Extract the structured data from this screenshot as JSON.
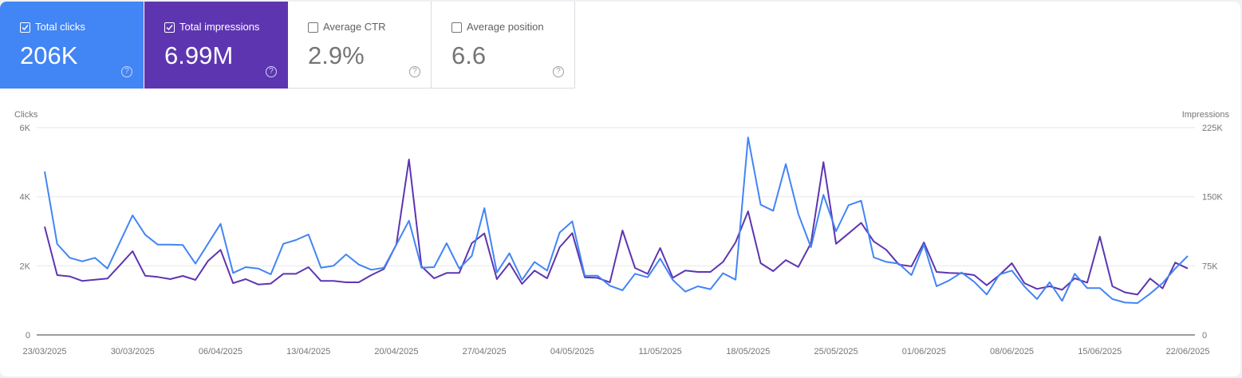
{
  "metrics": [
    {
      "label": "Total clicks",
      "value": "206K",
      "checked": true,
      "color": "#4285f4"
    },
    {
      "label": "Total impressions",
      "value": "6.99M",
      "checked": true,
      "color": "#5e35b1"
    },
    {
      "label": "Average CTR",
      "value": "2.9%",
      "checked": false
    },
    {
      "label": "Average position",
      "value": "6.6",
      "checked": false
    }
  ],
  "help_icon": "question-circle-icon",
  "chart_data": {
    "type": "line",
    "left_axis": {
      "label": "Clicks",
      "ticks": [
        "0",
        "2K",
        "4K",
        "6K"
      ],
      "tick_values": [
        0,
        2000,
        4000,
        6000
      ],
      "range": [
        0,
        6000
      ]
    },
    "right_axis": {
      "label": "Impressions",
      "ticks": [
        "0",
        "75K",
        "150K",
        "225K"
      ],
      "tick_values": [
        0,
        75000,
        150000,
        225000
      ],
      "range": [
        0,
        225000
      ]
    },
    "grid": true,
    "x_tick_labels": [
      "23/03/2025",
      "30/03/2025",
      "06/04/2025",
      "13/04/2025",
      "20/04/2025",
      "27/04/2025",
      "04/05/2025",
      "11/05/2025",
      "18/05/2025",
      "25/05/2025",
      "01/06/2025",
      "08/06/2025",
      "15/06/2025",
      "22/06/2025"
    ],
    "x": [
      "23/03/2025",
      "24/03/2025",
      "25/03/2025",
      "26/03/2025",
      "27/03/2025",
      "28/03/2025",
      "29/03/2025",
      "30/03/2025",
      "31/03/2025",
      "01/04/2025",
      "02/04/2025",
      "03/04/2025",
      "04/04/2025",
      "05/04/2025",
      "06/04/2025",
      "07/04/2025",
      "08/04/2025",
      "09/04/2025",
      "10/04/2025",
      "11/04/2025",
      "12/04/2025",
      "13/04/2025",
      "14/04/2025",
      "15/04/2025",
      "16/04/2025",
      "17/04/2025",
      "18/04/2025",
      "19/04/2025",
      "20/04/2025",
      "21/04/2025",
      "22/04/2025",
      "23/04/2025",
      "24/04/2025",
      "25/04/2025",
      "26/04/2025",
      "27/04/2025",
      "28/04/2025",
      "29/04/2025",
      "30/04/2025",
      "01/05/2025",
      "02/05/2025",
      "03/05/2025",
      "04/05/2025",
      "05/05/2025",
      "06/05/2025",
      "07/05/2025",
      "08/05/2025",
      "09/05/2025",
      "10/05/2025",
      "11/05/2025",
      "12/05/2025",
      "13/05/2025",
      "14/05/2025",
      "15/05/2025",
      "16/05/2025",
      "17/05/2025",
      "18/05/2025",
      "19/05/2025",
      "20/05/2025",
      "21/05/2025",
      "22/05/2025",
      "23/05/2025",
      "24/05/2025",
      "25/05/2025",
      "26/05/2025",
      "27/05/2025",
      "28/05/2025",
      "29/05/2025",
      "30/05/2025",
      "31/05/2025",
      "01/06/2025",
      "02/06/2025",
      "03/06/2025",
      "04/06/2025",
      "05/06/2025",
      "06/06/2025",
      "07/06/2025",
      "08/06/2025",
      "09/06/2025",
      "10/06/2025",
      "11/06/2025",
      "12/06/2025",
      "13/06/2025",
      "14/06/2025",
      "15/06/2025",
      "16/06/2025",
      "17/06/2025",
      "18/06/2025",
      "19/06/2025",
      "20/06/2025",
      "21/06/2025",
      "22/06/2025"
    ],
    "series": [
      {
        "name": "Clicks",
        "axis": "left",
        "color": "#4285f4",
        "values": [
          4731,
          2631,
          2231,
          2131,
          2231,
          1923,
          2692,
          3462,
          2900,
          2615,
          2615,
          2600,
          2062,
          2638,
          3215,
          1792,
          1962,
          1923,
          1754,
          2638,
          2746,
          2908,
          1946,
          2000,
          2331,
          2038,
          1885,
          1946,
          2615,
          3308,
          1946,
          1962,
          2654,
          1923,
          2285,
          3669,
          1808,
          2362,
          1592,
          2115,
          1862,
          2962,
          3285,
          1715,
          1715,
          1423,
          1292,
          1769,
          1669,
          2208,
          1592,
          1254,
          1408,
          1323,
          1785,
          1600,
          5715,
          3769,
          3592,
          4946,
          3500,
          2538,
          4054,
          3000,
          3754,
          3885,
          2246,
          2115,
          2062,
          1731,
          2615,
          1408,
          1577,
          1808,
          1538,
          1169,
          1746,
          1862,
          1400,
          1038,
          1523,
          985,
          1769,
          1354,
          1354,
          1038,
          938,
          923,
          1192,
          1500,
          1923,
          2285
        ]
      },
      {
        "name": "Impressions",
        "axis": "right",
        "color": "#5e35b1",
        "values": [
          117400,
          64900,
          63500,
          58600,
          60000,
          61200,
          75900,
          90900,
          64300,
          62900,
          60600,
          64000,
          59700,
          80200,
          92300,
          56200,
          60600,
          54800,
          55700,
          66300,
          66300,
          73600,
          58600,
          58600,
          57100,
          57100,
          64900,
          71500,
          98100,
          190400,
          74400,
          61400,
          67200,
          67200,
          99500,
          110200,
          60600,
          77900,
          55400,
          69800,
          61400,
          95200,
          110500,
          62600,
          62000,
          57100,
          113400,
          72700,
          66300,
          94300,
          62000,
          69800,
          68400,
          68400,
          79300,
          100400,
          134100,
          77900,
          69200,
          81300,
          73800,
          99500,
          187500,
          98900,
          110200,
          121700,
          101500,
          92300,
          76400,
          74400,
          100400,
          68400,
          67200,
          66900,
          64900,
          53900,
          64900,
          77900,
          56200,
          49900,
          52800,
          49000,
          61400,
          56800,
          106700,
          52800,
          46200,
          43800,
          61200,
          50500,
          78500,
          72100
        ]
      }
    ]
  }
}
